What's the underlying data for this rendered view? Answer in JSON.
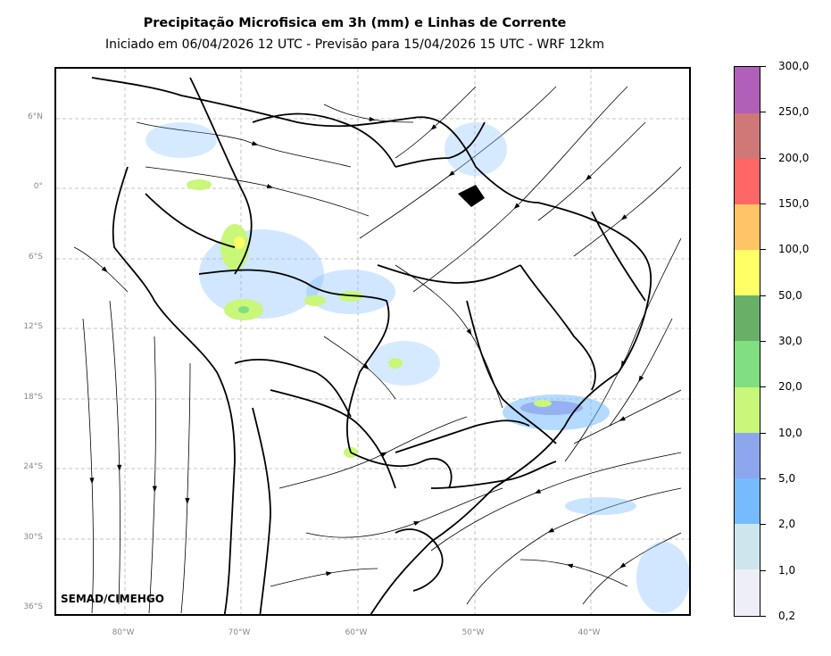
{
  "header": {
    "title": "Precipitação Microfisica em 3h (mm) e Linhas de Corrente",
    "subtitle": "Iniciado em 06/04/2026 12 UTC - Previsão para 15/04/2026 15 UTC - WRF 12km"
  },
  "map": {
    "lat_labels": [
      "6°N",
      "0°",
      "6°S",
      "12°S",
      "18°S",
      "24°S",
      "30°S",
      "36°S"
    ],
    "lon_labels": [
      "80°W",
      "70°W",
      "60°W",
      "50°W",
      "40°W"
    ],
    "credit": "SEMAD/CIMEHGO",
    "gridline_color": "#b4b4b4",
    "ocean_color": "#ffffff",
    "border_color": "#000000"
  },
  "colorbar": {
    "levels": [
      "0,2",
      "1,0",
      "2,0",
      "5,0",
      "10,0",
      "20,0",
      "30,0",
      "50,0",
      "100,0",
      "150,0",
      "200,0",
      "250,0",
      "300,0"
    ],
    "colors": [
      "#eeeef8",
      "#cde6ee",
      "#77bbff",
      "#8ea6ee",
      "#c8f77a",
      "#80df80",
      "#68b068",
      "#ffff66",
      "#ffc466",
      "#ff6666",
      "#d07878",
      "#b060b8"
    ]
  }
}
